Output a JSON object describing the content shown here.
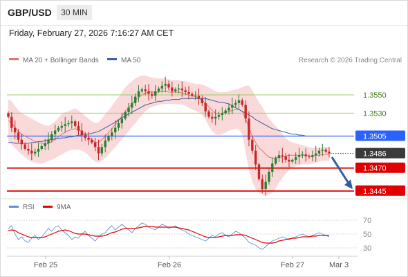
{
  "header": {
    "symbol": "GBP/USD",
    "timeframe": "30 MIN",
    "datetime": "Friday, February 27, 2026 7:16:27 AM CET"
  },
  "legend": {
    "ma20_label": "MA 20 + Bollinger Bands",
    "ma50_label": "MA 50",
    "attribution": "Research © 2026 Trading Central",
    "rsi_label": "RSI",
    "rsi_ma_label": "9MA"
  },
  "colors": {
    "up": "#2e7d32",
    "down": "#c62828",
    "band": "#f7cccc",
    "ma20": "#e57373",
    "ma50": "#3b5fa0",
    "resistance": "#9ccc65",
    "pivot": "#2962ff",
    "support": "#e00000",
    "arrow": "#2f5f9e",
    "rsi": "#5b8fd9",
    "rsi_ma": "#e00000"
  },
  "chart_data": [
    {
      "type": "line",
      "chart_kind": "candlestick",
      "x_tick_labels": [
        "Feb 25",
        "Feb 26",
        "Feb 27",
        "Mar 3"
      ],
      "ylim": [
        1.3438,
        1.3578
      ],
      "levels": [
        {
          "label": "1.3550",
          "value": 1.355,
          "kind": "resistance"
        },
        {
          "label": "1.3530",
          "value": 1.353,
          "kind": "resistance"
        },
        {
          "label": "1.3505",
          "value": 1.3505,
          "kind": "pivot"
        },
        {
          "label": "1.3486",
          "value": 1.3486,
          "kind": "last"
        },
        {
          "label": "1.3470",
          "value": 1.347,
          "kind": "support"
        },
        {
          "label": "1.3445",
          "value": 1.3445,
          "kind": "support"
        }
      ],
      "forecast_arrow": {
        "from": 1.3482,
        "to": 1.3447,
        "direction": "down"
      },
      "closes": [
        1.3526,
        1.3514,
        1.3509,
        1.3501,
        1.3496,
        1.3491,
        1.3489,
        1.3486,
        1.3488,
        1.3491,
        1.3494,
        1.3497,
        1.3501,
        1.3507,
        1.3511,
        1.3514,
        1.3516,
        1.3518,
        1.3519,
        1.3521,
        1.3516,
        1.3511,
        1.3506,
        1.3503,
        1.3501,
        1.3498,
        1.3493,
        1.3486,
        1.3493,
        1.35,
        1.3505,
        1.3509,
        1.3514,
        1.3519,
        1.3524,
        1.3531,
        1.3536,
        1.3541,
        1.3548,
        1.3554,
        1.3556,
        1.3554,
        1.3551,
        1.3549,
        1.3554,
        1.3557,
        1.356,
        1.3562,
        1.3558,
        1.3554,
        1.3556,
        1.3557,
        1.3555,
        1.3553,
        1.3551,
        1.3549,
        1.3549,
        1.3546,
        1.3541,
        1.3532,
        1.3526,
        1.3524,
        1.3526,
        1.3528,
        1.353,
        1.3533,
        1.3536,
        1.3539,
        1.3541,
        1.3544,
        1.3539,
        1.3524,
        1.3501,
        1.3489,
        1.3474,
        1.3458,
        1.3447,
        1.3455,
        1.3466,
        1.3475,
        1.3481,
        1.3484,
        1.3483,
        1.3479,
        1.3477,
        1.3479,
        1.3482,
        1.3484,
        1.3485,
        1.3483,
        1.3482,
        1.3484,
        1.3486,
        1.3489,
        1.349,
        1.3488,
        1.3486
      ],
      "band_upper": [
        1.3545,
        1.3543,
        1.3538,
        1.3533,
        1.353,
        1.3528,
        1.3526,
        1.3524,
        1.3522,
        1.352,
        1.3518,
        1.3517,
        1.3516,
        1.3518,
        1.3521,
        1.3525,
        1.3529,
        1.3531,
        1.3532,
        1.3534,
        1.3535,
        1.3533,
        1.353,
        1.3527,
        1.3524,
        1.3521,
        1.3519,
        1.352,
        1.3524,
        1.3529,
        1.3533,
        1.3538,
        1.3543,
        1.3548,
        1.3553,
        1.3558,
        1.3562,
        1.3565,
        1.3568,
        1.357,
        1.3571,
        1.3571,
        1.357,
        1.3569,
        1.3568,
        1.3568,
        1.3568,
        1.3568,
        1.3567,
        1.3566,
        1.3566,
        1.3566,
        1.3565,
        1.3565,
        1.3564,
        1.3563,
        1.3562,
        1.3562,
        1.3561,
        1.356,
        1.3558,
        1.3556,
        1.3554,
        1.3553,
        1.3553,
        1.3553,
        1.3554,
        1.3555,
        1.3556,
        1.3557,
        1.3558,
        1.356,
        1.356,
        1.3555,
        1.3548,
        1.3542,
        1.3537,
        1.353,
        1.3524,
        1.352,
        1.3516,
        1.3512,
        1.3507,
        1.3503,
        1.35,
        1.3498,
        1.3497,
        1.3496,
        1.3495,
        1.3494,
        1.3493,
        1.3492,
        1.3492,
        1.3492,
        1.3493,
        1.3493,
        1.3493
      ],
      "band_lower": [
        1.35,
        1.3496,
        1.3492,
        1.3488,
        1.3485,
        1.3482,
        1.3479,
        1.3477,
        1.3476,
        1.3475,
        1.3475,
        1.3476,
        1.3478,
        1.3479,
        1.3481,
        1.3483,
        1.3485,
        1.3487,
        1.3489,
        1.349,
        1.349,
        1.349,
        1.3489,
        1.3487,
        1.3484,
        1.348,
        1.3477,
        1.3476,
        1.3478,
        1.3481,
        1.3485,
        1.3489,
        1.3493,
        1.3497,
        1.3501,
        1.3506,
        1.351,
        1.3515,
        1.3519,
        1.3524,
        1.3528,
        1.3532,
        1.3535,
        1.3537,
        1.3538,
        1.3539,
        1.354,
        1.354,
        1.354,
        1.354,
        1.354,
        1.354,
        1.3539,
        1.3538,
        1.3536,
        1.3534,
        1.3533,
        1.3531,
        1.3528,
        1.3523,
        1.3516,
        1.351,
        1.3507,
        1.3506,
        1.3507,
        1.3509,
        1.3511,
        1.3512,
        1.3513,
        1.3512,
        1.3507,
        1.3488,
        1.3468,
        1.3455,
        1.3447,
        1.3443,
        1.3441,
        1.344,
        1.3441,
        1.3443,
        1.3448,
        1.3454,
        1.3459,
        1.3464,
        1.3468,
        1.3471,
        1.3472,
        1.3473,
        1.3474,
        1.3474,
        1.3474,
        1.3475,
        1.3476,
        1.3477,
        1.3478,
        1.3478,
        1.3478
      ],
      "ma20": [
        1.3522,
        1.3519,
        1.3515,
        1.351,
        1.3507,
        1.3505,
        1.3503,
        1.3501,
        1.3499,
        1.3498,
        1.3497,
        1.3496,
        1.3497,
        1.3499,
        1.3501,
        1.3504,
        1.3507,
        1.3509,
        1.3511,
        1.3512,
        1.3513,
        1.3512,
        1.351,
        1.3507,
        1.3504,
        1.3501,
        1.3498,
        1.3498,
        1.3501,
        1.3505,
        1.3509,
        1.3513,
        1.3518,
        1.3522,
        1.3527,
        1.3532,
        1.3536,
        1.354,
        1.3544,
        1.3547,
        1.355,
        1.3552,
        1.3553,
        1.3553,
        1.3553,
        1.3553,
        1.3554,
        1.3554,
        1.3553,
        1.3553,
        1.3553,
        1.3553,
        1.3552,
        1.3551,
        1.355,
        1.3549,
        1.3548,
        1.3546,
        1.3544,
        1.3541,
        1.3537,
        1.3533,
        1.353,
        1.3529,
        1.353,
        1.3531,
        1.3532,
        1.3533,
        1.3534,
        1.3534,
        1.3532,
        1.3524,
        1.3514,
        1.3505,
        1.3498,
        1.3492,
        1.3489,
        1.3485,
        1.3482,
        1.3481,
        1.3481,
        1.3482,
        1.3482,
        1.3483,
        1.3484,
        1.3484,
        1.3484,
        1.3484,
        1.3484,
        1.3484,
        1.3483,
        1.3483,
        1.3484,
        1.3484,
        1.3485,
        1.3485,
        1.3485
      ],
      "ma50": [
        1.3498,
        1.3498,
        1.3497,
        1.3497,
        1.3497,
        1.3497,
        1.3497,
        1.3498,
        1.3498,
        1.3499,
        1.3499,
        1.35,
        1.3501,
        1.3501,
        1.3502,
        1.3502,
        1.3503,
        1.3503,
        1.3504,
        1.3504,
        1.3505,
        1.3506,
        1.3506,
        1.3507,
        1.3507,
        1.3508,
        1.3509,
        1.351,
        1.3512,
        1.3514,
        1.3516,
        1.3518,
        1.352,
        1.3523,
        1.3525,
        1.3527,
        1.3529,
        1.3531,
        1.3533,
        1.3535,
        1.3537,
        1.3539,
        1.354,
        1.3541,
        1.3542,
        1.3543,
        1.3543,
        1.3544,
        1.3544,
        1.3545,
        1.3545,
        1.3545,
        1.3546,
        1.3546,
        1.3546,
        1.3546,
        1.3546,
        1.3546,
        1.3546,
        1.3546,
        1.3545,
        1.3544,
        1.3543,
        1.3542,
        1.3542,
        1.3541,
        1.354,
        1.3538,
        1.3536,
        1.3534,
        1.3532,
        1.353,
        1.3528,
        1.3526,
        1.3523,
        1.3521,
        1.3519,
        1.3517,
        1.3515,
        1.3513,
        1.3512,
        1.3511,
        1.351,
        1.3509,
        1.3508,
        1.3507,
        1.3507,
        1.3506,
        1.3506,
        1.3505,
        1.3505,
        1.3505,
        1.3505,
        1.3505,
        1.3505,
        1.3505,
        1.3505
      ]
    },
    {
      "type": "line",
      "title": "RSI",
      "y_tick_labels": [
        "70",
        "50",
        "30"
      ],
      "ylim": [
        22,
        78
      ],
      "series": [
        {
          "name": "RSI",
          "values": [
            58,
            62,
            50,
            42,
            46,
            40,
            38,
            44,
            48,
            42,
            46,
            52,
            58,
            54,
            60,
            62,
            56,
            52,
            48,
            42,
            46,
            44,
            50,
            54,
            48,
            44,
            40,
            46,
            50,
            52,
            58,
            62,
            56,
            60,
            64,
            60,
            56,
            52,
            58,
            62,
            66,
            64,
            60,
            58,
            56,
            60,
            64,
            62,
            58,
            60,
            62,
            58,
            56,
            54,
            50,
            48,
            46,
            44,
            42,
            40,
            44,
            48,
            46,
            50,
            52,
            48,
            46,
            50,
            54,
            52,
            48,
            44,
            38,
            36,
            34,
            30,
            28,
            32,
            36,
            40,
            42,
            44,
            46,
            44,
            42,
            44,
            46,
            48,
            50,
            48,
            46,
            48,
            50,
            52,
            50,
            48,
            46
          ]
        },
        {
          "name": "9MA",
          "values": [
            55,
            56,
            55,
            52,
            50,
            48,
            46,
            45,
            45,
            45,
            45,
            46,
            48,
            50,
            52,
            54,
            55,
            56,
            55,
            53,
            51,
            50,
            50,
            50,
            49,
            48,
            47,
            47,
            47,
            48,
            50,
            52,
            53,
            55,
            57,
            58,
            58,
            58,
            58,
            59,
            60,
            61,
            61,
            61,
            60,
            60,
            60,
            60,
            60,
            60,
            60,
            59,
            58,
            57,
            56,
            54,
            52,
            50,
            48,
            46,
            45,
            45,
            45,
            46,
            47,
            48,
            48,
            48,
            49,
            49,
            49,
            48,
            46,
            44,
            42,
            40,
            38,
            37,
            37,
            37,
            38,
            40,
            41,
            42,
            43,
            44,
            44,
            45,
            46,
            46,
            46,
            47,
            47,
            48,
            48,
            48,
            48
          ]
        }
      ]
    }
  ]
}
